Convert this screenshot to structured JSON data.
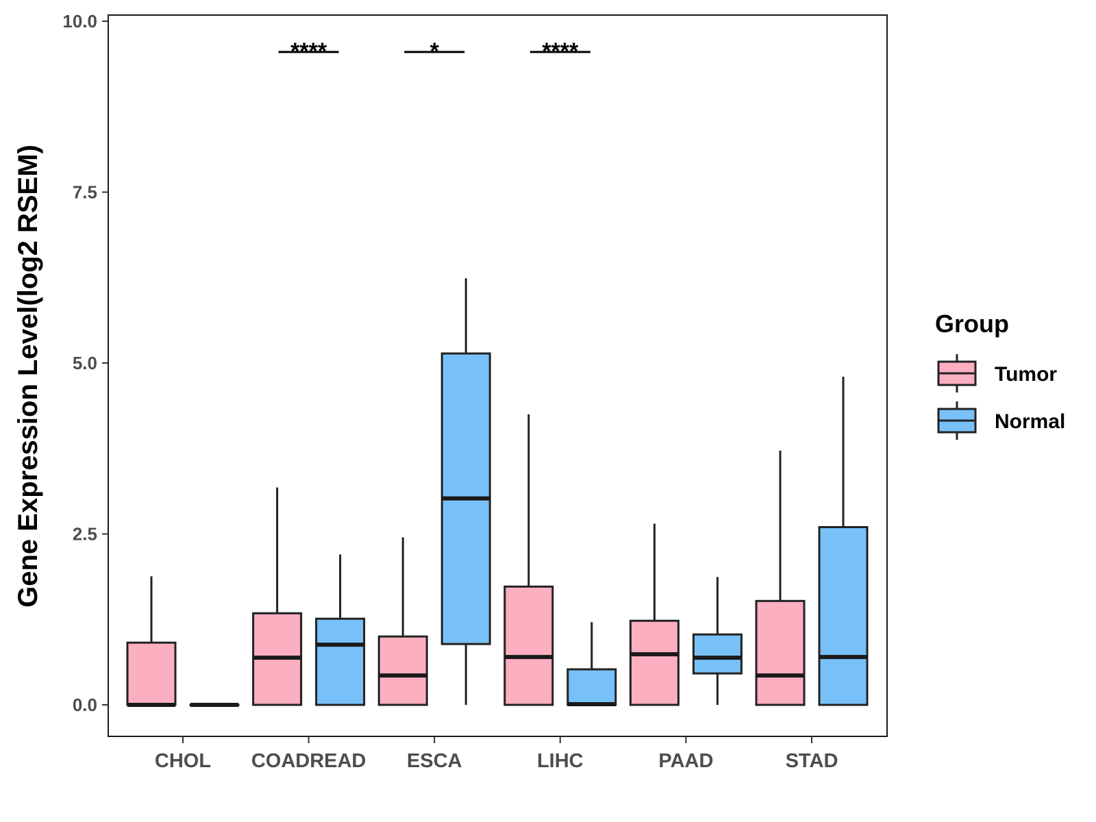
{
  "chart_data": {
    "type": "boxplot",
    "ylabel": "Gene Expression Level(log2 RSEM)",
    "xlabel": "",
    "ylim": [
      -0.47,
      10.1
    ],
    "yticks": [
      0.0,
      2.5,
      5.0,
      7.5,
      10.0
    ],
    "ytick_labels": [
      "0.0",
      "2.5",
      "5.0",
      "7.5",
      "10.0"
    ],
    "grid": false,
    "legend": {
      "title": "Group",
      "position": "right",
      "entries": [
        {
          "name": "Tumor",
          "color": "#fbafc1"
        },
        {
          "name": "Normal",
          "color": "#78c1f8"
        }
      ]
    },
    "categories": [
      "CHOL",
      "COADREAD",
      "ESCA",
      "LIHC",
      "PAAD",
      "STAD"
    ],
    "series": [
      {
        "name": "Tumor",
        "color": "#fbafc1",
        "boxes": [
          {
            "whisker_low": 0.0,
            "q1": 0.0,
            "median": 0.0,
            "q3": 0.91,
            "whisker_high": 1.88
          },
          {
            "whisker_low": 0.0,
            "q1": 0.0,
            "median": 0.69,
            "q3": 1.34,
            "whisker_high": 3.18
          },
          {
            "whisker_low": 0.0,
            "q1": 0.0,
            "median": 0.43,
            "q3": 1.0,
            "whisker_high": 2.45
          },
          {
            "whisker_low": 0.0,
            "q1": 0.0,
            "median": 0.7,
            "q3": 1.73,
            "whisker_high": 4.25
          },
          {
            "whisker_low": 0.0,
            "q1": 0.0,
            "median": 0.74,
            "q3": 1.23,
            "whisker_high": 2.65
          },
          {
            "whisker_low": 0.0,
            "q1": 0.0,
            "median": 0.43,
            "q3": 1.52,
            "whisker_high": 3.72
          }
        ]
      },
      {
        "name": "Normal",
        "color": "#78c1f8",
        "boxes": [
          {
            "whisker_low": 0.0,
            "q1": 0.0,
            "median": 0.0,
            "q3": 0.0,
            "whisker_high": 0.0
          },
          {
            "whisker_low": 0.0,
            "q1": 0.0,
            "median": 0.88,
            "q3": 1.26,
            "whisker_high": 2.2
          },
          {
            "whisker_low": 0.0,
            "q1": 0.89,
            "median": 3.02,
            "q3": 5.14,
            "whisker_high": 6.24
          },
          {
            "whisker_low": 0.0,
            "q1": 0.0,
            "median": 0.01,
            "q3": 0.52,
            "whisker_high": 1.21
          },
          {
            "whisker_low": 0.0,
            "q1": 0.46,
            "median": 0.69,
            "q3": 1.03,
            "whisker_high": 1.87
          },
          {
            "whisker_low": 0.0,
            "q1": 0.0,
            "median": 0.7,
            "q3": 2.6,
            "whisker_high": 4.8
          }
        ]
      }
    ],
    "significance": [
      {
        "category": "COADREAD",
        "label": "****",
        "y": 9.55
      },
      {
        "category": "ESCA",
        "label": "*",
        "y": 9.55
      },
      {
        "category": "LIHC",
        "label": "****",
        "y": 9.55
      }
    ]
  }
}
